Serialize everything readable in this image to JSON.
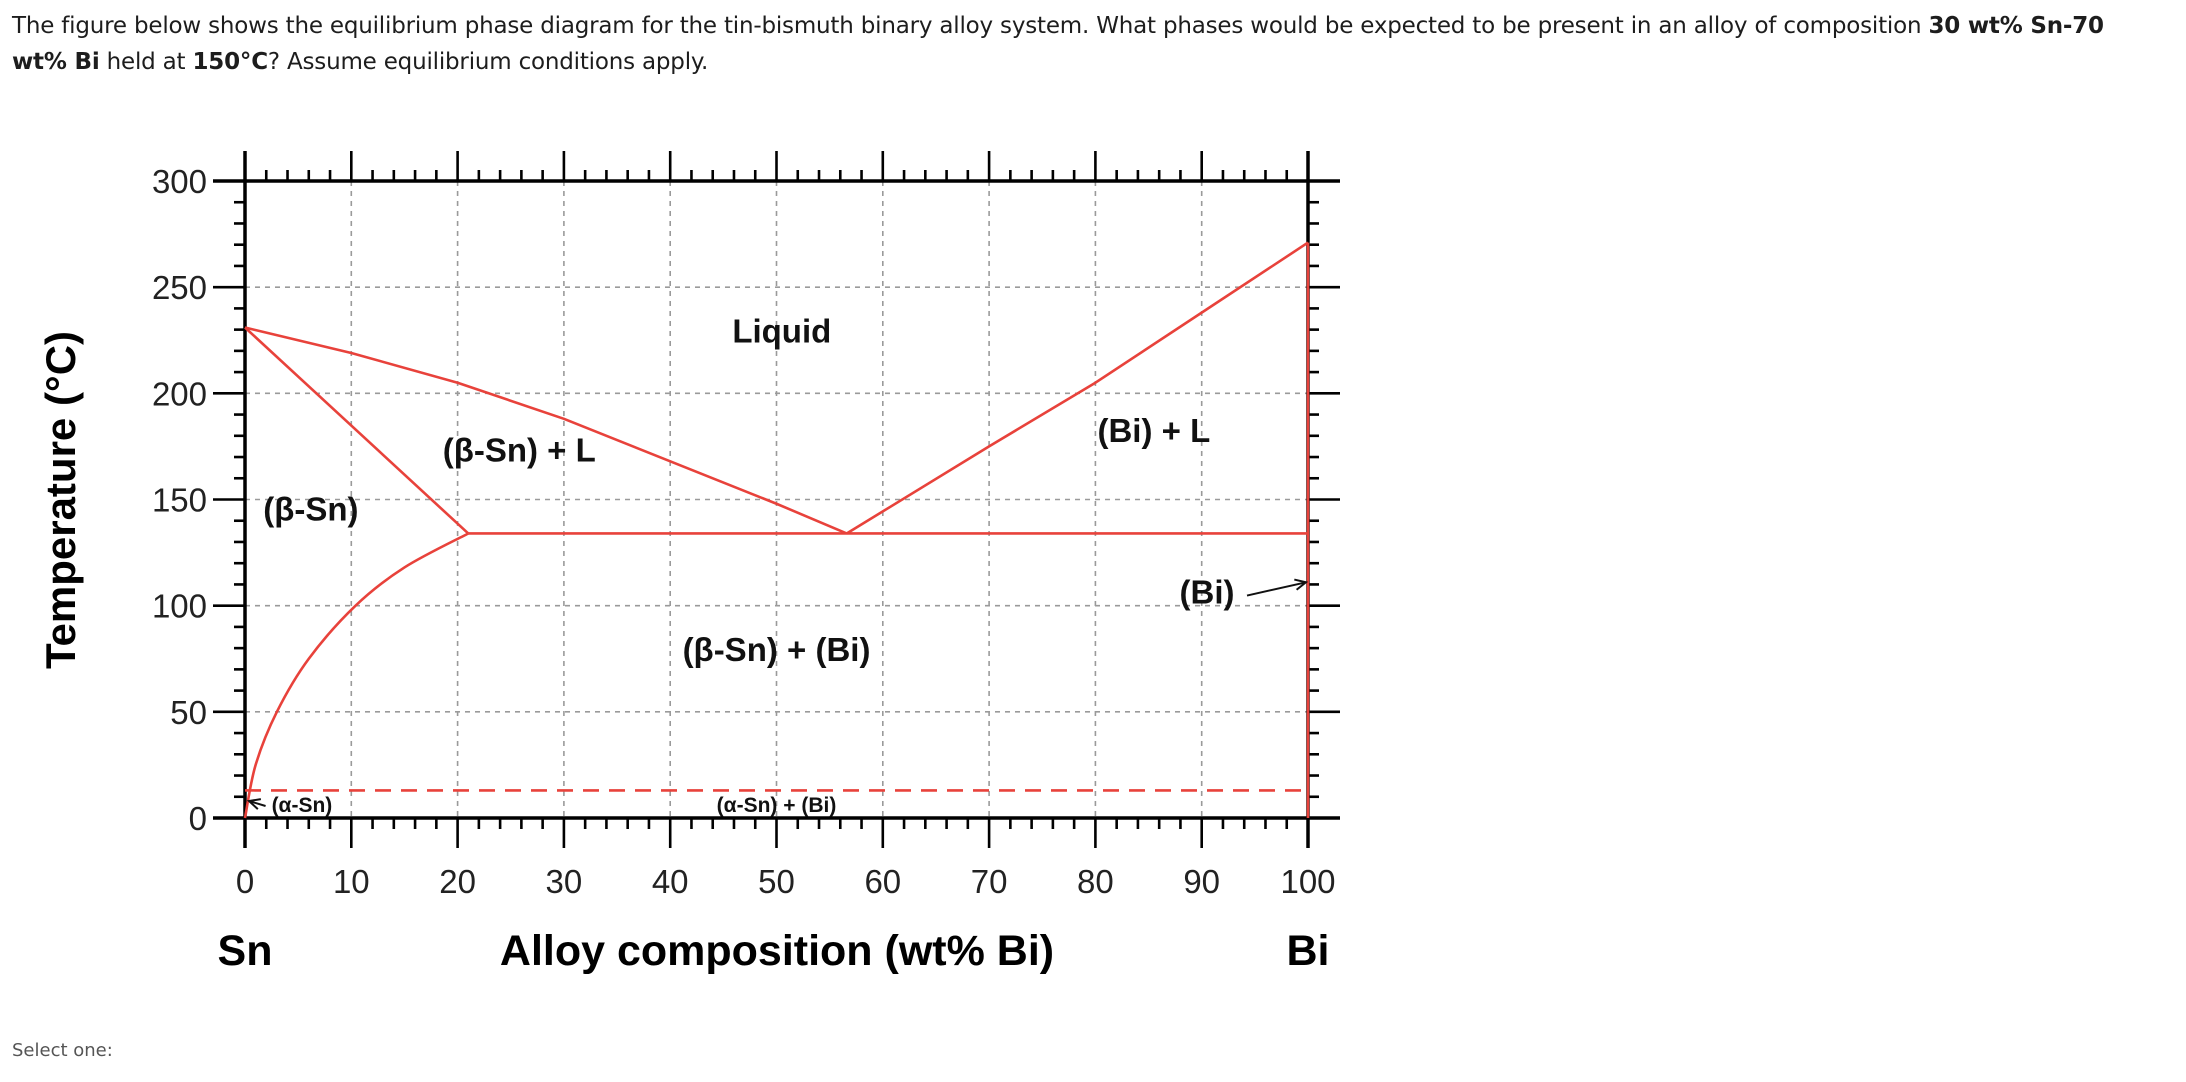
{
  "question": {
    "part1": "The figure below shows the equilibrium phase diagram for the tin-bismuth binary alloy system. What phases would be expected to be present in an alloy of composition ",
    "composition_bold": "30 wt% Sn-70 wt% Bi",
    "part2": " held at ",
    "temperature_bold": "150°C",
    "part3": "? Assume equilibrium conditions apply."
  },
  "answer_prompt": "Select one:",
  "colors": {
    "phase_line": "#e8423b",
    "axis": "#000000",
    "grid": "#9a9a9a",
    "text": "#1d1d1d"
  },
  "chart_data": {
    "type": "line",
    "title": "",
    "xlabel": "Alloy composition (wt% Bi)",
    "ylabel": "Temperature (°C)",
    "xlim": [
      0,
      100
    ],
    "ylim": [
      0,
      300
    ],
    "x_ticks": [
      0,
      10,
      20,
      30,
      40,
      50,
      60,
      70,
      80,
      90,
      100
    ],
    "y_ticks": [
      0,
      50,
      100,
      150,
      200,
      250,
      300
    ],
    "x_minor_step": 2,
    "y_minor_step": 10,
    "grid": true,
    "x_end_labels": {
      "left": "Sn",
      "right": "Bi"
    },
    "series": [
      {
        "name": "liquidus (Sn side)",
        "x": [
          0,
          10,
          20,
          30,
          40,
          50,
          56.6
        ],
        "y": [
          231,
          219,
          205,
          188,
          168,
          148,
          134
        ]
      },
      {
        "name": "liquidus (Bi side)",
        "x": [
          56.6,
          70,
          80,
          90,
          100
        ],
        "y": [
          134,
          175,
          205,
          238,
          271
        ]
      },
      {
        "name": "solidus (beta-Sn)",
        "x": [
          0,
          21
        ],
        "y": [
          231,
          134
        ]
      },
      {
        "name": "solvus (beta-Sn)",
        "x": [
          0,
          1,
          3,
          6,
          10.4,
          15,
          21
        ],
        "y": [
          0,
          25,
          50,
          75,
          100,
          118,
          134
        ]
      },
      {
        "name": "eutectic isotherm",
        "x": [
          21,
          100
        ],
        "y": [
          134,
          134
        ]
      },
      {
        "name": "Bi solid solution boundary",
        "x": [
          100,
          100
        ],
        "y": [
          0,
          271
        ]
      },
      {
        "name": "alpha-beta Sn transformation (dashed)",
        "x": [
          0,
          100
        ],
        "y": [
          13,
          13
        ],
        "style": "dashed"
      }
    ],
    "key_points": {
      "sn_melting_point": [
        0,
        231
      ],
      "bi_melting_point": [
        100,
        271
      ],
      "eutectic_point": [
        56.6,
        134
      ],
      "max_solubility_bi_in_sn": [
        21,
        134
      ]
    },
    "region_labels": [
      {
        "text": "Liquid",
        "x": 50.5,
        "y": 224
      },
      {
        "text": "(β-Sn) + L",
        "x": 25.8,
        "y": 168
      },
      {
        "text": "(Bi) + L",
        "x": 85.5,
        "y": 177
      },
      {
        "text": "(β-Sn)",
        "x": 6.2,
        "y": 140
      },
      {
        "text": "(β-Sn) + (Bi)",
        "x": 50,
        "y": 74
      },
      {
        "text": "(Bi)",
        "x": 90.5,
        "y": 101,
        "arrow_to": [
          100,
          111
        ]
      },
      {
        "text": "(α-Sn)",
        "x": 7,
        "y": 6,
        "arrow_to": [
          0,
          8
        ]
      },
      {
        "text": "(α-Sn) + (Bi)",
        "x": 50,
        "y": 6
      }
    ]
  }
}
